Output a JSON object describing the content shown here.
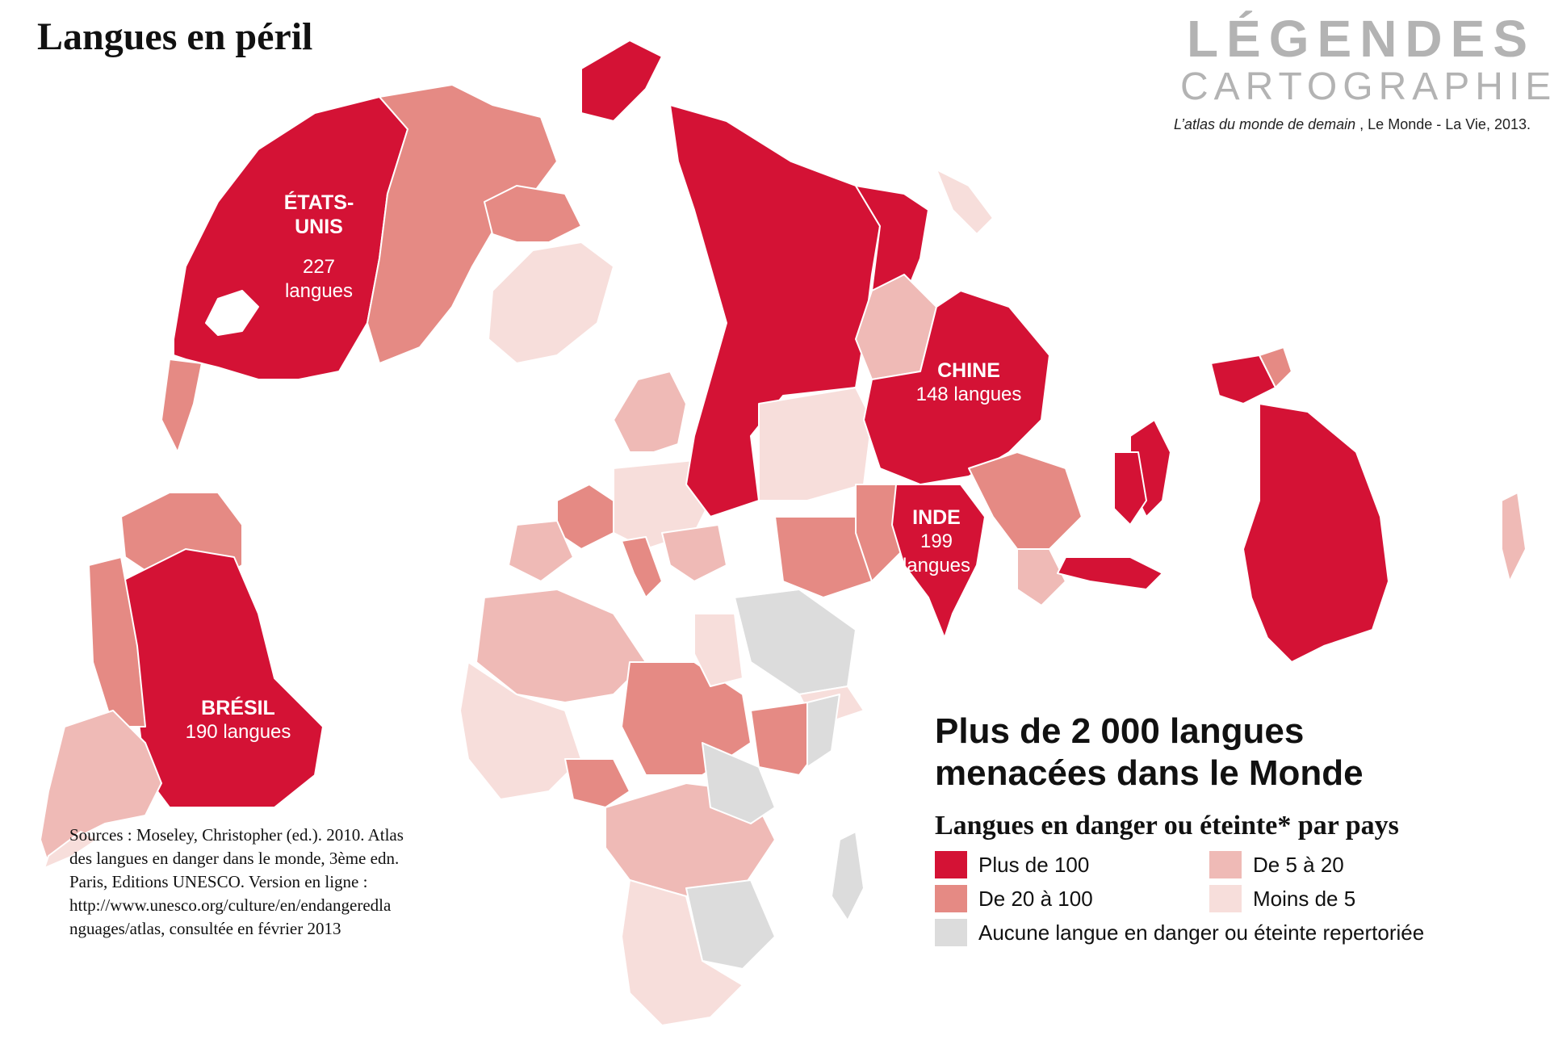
{
  "title": "Langues en péril",
  "logo": {
    "top": "LÉGENDES",
    "bottom": "CARTOGRAPHIE"
  },
  "citation": {
    "title": "L’atlas du monde de demain",
    "rest": " , Le Monde - La Vie, 2013."
  },
  "headline": {
    "line1": "Plus de 2 000 langues",
    "line2": "menacées dans le Monde"
  },
  "legend": {
    "title": "Langues en danger ou éteinte* par pays",
    "items": [
      {
        "label": "Plus de 100",
        "color": "#d41235"
      },
      {
        "label": "De 20 à 100",
        "color": "#e58a84"
      },
      {
        "label": "De 5 à 20",
        "color": "#efbab6"
      },
      {
        "label": "Moins de 5",
        "color": "#f7dedb"
      },
      {
        "label": "Aucune langue en danger ou éteinte repertoriée",
        "color": "#dcdcdc"
      }
    ]
  },
  "countries": [
    {
      "name": "ÉTATS-UNIS",
      "count": "227 langues",
      "category": "Plus de 100"
    },
    {
      "name": "CHINE",
      "count": "148 langues",
      "category": "Plus de 100"
    },
    {
      "name": "INDE",
      "count": "199 langues",
      "category": "Plus de 100"
    },
    {
      "name": "BRÉSIL",
      "count": "190 langues",
      "category": "Plus de 100"
    }
  ],
  "sources": {
    "lines": [
      "Sources : Moseley, Christopher (ed.). 2010. Atlas",
      "des langues en danger dans le monde, 3ème edn.",
      "Paris, Editions UNESCO. Version en ligne :",
      "http://www.unesco.org/culture/en/endangeredla",
      "nguages/atlas, consultée en février 2013"
    ]
  },
  "colors": {
    "plus100": "#d41235",
    "de20a100": "#e58a84",
    "de5a20": "#efbab6",
    "moins5": "#f7dedb",
    "aucune": "#dcdcdc",
    "logo_gray": "#b3b3b3"
  }
}
